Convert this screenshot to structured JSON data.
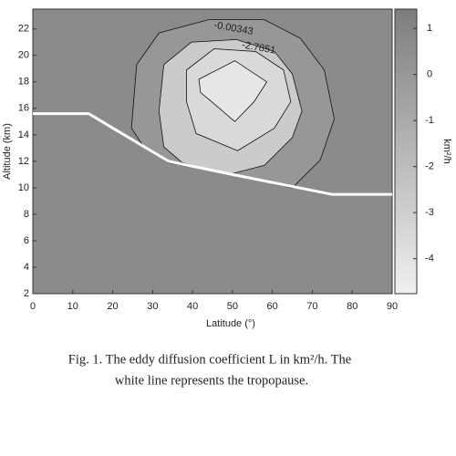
{
  "chart_data": {
    "type": "contour",
    "xlabel": "Latitude (°)",
    "ylabel": "Altitude (km)",
    "xlim": [
      0,
      90
    ],
    "xticks": [
      0,
      10,
      20,
      30,
      40,
      50,
      60,
      70,
      80,
      90
    ],
    "ylim": [
      2,
      23.5
    ],
    "yticks": [
      2,
      4,
      6,
      8,
      10,
      12,
      14,
      16,
      18,
      20,
      22
    ],
    "colorbar": {
      "label": "km²/h",
      "clim": [
        -4.76,
        1.42
      ],
      "ticks": [
        1,
        0,
        -1,
        -2,
        -3,
        -4
      ],
      "cmap": [
        "#f0f0f0",
        "#7d7d7d"
      ]
    },
    "contours": [
      {
        "level": -0.00343,
        "label": true,
        "x": [
          24.7,
          26,
          31.6,
          44,
          58,
          67,
          73,
          75.5,
          72,
          65,
          50,
          34,
          28
        ],
        "y": [
          14.5,
          19.3,
          21.7,
          22.7,
          22.7,
          21.3,
          18.9,
          15.2,
          12.1,
          10,
          11,
          11.9,
          13
        ]
      },
      {
        "level": -2.7851,
        "label": true,
        "x": [
          32.8,
          39.7,
          51,
          60.5,
          65,
          67.4,
          65,
          58,
          49,
          37.4,
          32.8,
          31.6
        ],
        "y": [
          19.3,
          21,
          21.2,
          20.3,
          18.6,
          15.8,
          13.8,
          11.7,
          11,
          11.9,
          13.1,
          15.8
        ]
      },
      {
        "level": -3.5,
        "label": false,
        "x": [
          38.5,
          45.4,
          55.8,
          62.8,
          64.6,
          60.5,
          51.3,
          40.9,
          38.5
        ],
        "y": [
          18.9,
          20.5,
          20.3,
          18.9,
          16.5,
          14.5,
          12.8,
          14.1,
          16.5
        ]
      },
      {
        "level": -4.3,
        "label": false,
        "x": [
          41.6,
          50.6,
          58.6,
          55.4,
          50.6,
          44.8,
          42
        ],
        "y": [
          18.2,
          19.6,
          18,
          16.5,
          15,
          16.5,
          17.2
        ]
      }
    ],
    "tropopause": {
      "color": "#ffffff",
      "x": [
        0,
        14,
        34,
        50,
        75,
        90
      ],
      "y": [
        15.6,
        15.6,
        12,
        11,
        9.5,
        9.5
      ]
    },
    "caption": [
      "Fig. 1. The eddy diffusion coefficient L in km²/h. The",
      "white line represents the tropopause."
    ]
  }
}
